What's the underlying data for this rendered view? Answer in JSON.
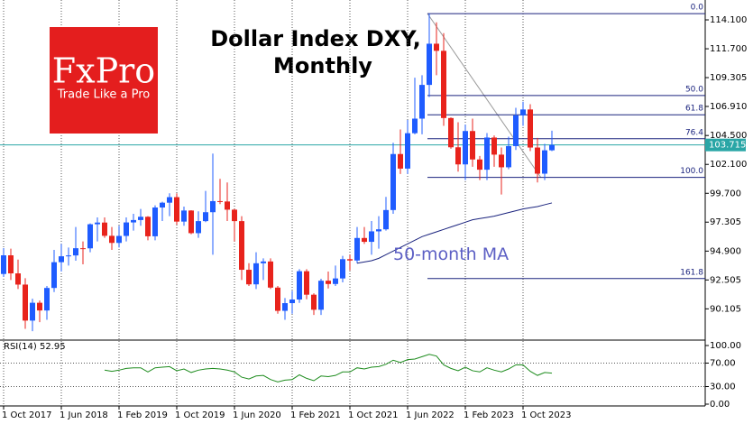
{
  "chart_data": [
    {
      "type": "candlestick",
      "title": [
        "Dollar Index DXY,",
        "Monthly"
      ],
      "logo": {
        "name": "FxPro",
        "tagline": "Trade Like a Pro"
      },
      "x": [
        "2017-10",
        "2017-11",
        "2017-12",
        "2018-01",
        "2018-02",
        "2018-03",
        "2018-04",
        "2018-05",
        "2018-06",
        "2018-07",
        "2018-08",
        "2018-09",
        "2018-10",
        "2018-11",
        "2018-12",
        "2019-01",
        "2019-02",
        "2019-03",
        "2019-04",
        "2019-05",
        "2019-06",
        "2019-07",
        "2019-08",
        "2019-09",
        "2019-10",
        "2019-11",
        "2019-12",
        "2020-01",
        "2020-02",
        "2020-03",
        "2020-04",
        "2020-05",
        "2020-06",
        "2020-07",
        "2020-08",
        "2020-09",
        "2020-10",
        "2020-11",
        "2020-12",
        "2021-01",
        "2021-02",
        "2021-03",
        "2021-04",
        "2021-05",
        "2021-06",
        "2021-07",
        "2021-08",
        "2021-09",
        "2021-10",
        "2021-11",
        "2021-12",
        "2022-01",
        "2022-02",
        "2022-03",
        "2022-04",
        "2022-05",
        "2022-06",
        "2022-07",
        "2022-08",
        "2022-09",
        "2022-10",
        "2022-11",
        "2022-12",
        "2023-01",
        "2023-02",
        "2023-03",
        "2023-04",
        "2023-05",
        "2023-06",
        "2023-07",
        "2023-08",
        "2023-09",
        "2023-10",
        "2023-11",
        "2023-12",
        "2024-01",
        "2024-02"
      ],
      "open": [
        93.0,
        94.55,
        93.05,
        92.12,
        89.13,
        90.61,
        89.97,
        91.84,
        93.98,
        94.47,
        94.54,
        95.14,
        95.13,
        97.13,
        97.27,
        96.17,
        95.58,
        96.16,
        97.28,
        97.48,
        97.75,
        96.13,
        98.52,
        98.92,
        99.38,
        97.35,
        98.27,
        96.39,
        97.39,
        98.13,
        99.05,
        99.02,
        98.34,
        97.39,
        93.35,
        92.14,
        93.89,
        94.04,
        91.87,
        89.94,
        90.58,
        90.88,
        93.23,
        91.28,
        90.03,
        92.44,
        92.17,
        92.63,
        94.23,
        94.12,
        95.99,
        95.67,
        96.54,
        96.71,
        98.31,
        102.96,
        101.75,
        104.69,
        105.9,
        108.7,
        112.12,
        111.53,
        105.95,
        103.52,
        102.1,
        104.87,
        102.51,
        101.66,
        104.33,
        102.91,
        101.86,
        103.62,
        106.17,
        106.66,
        103.5,
        101.33,
        103.27
      ],
      "high": [
        95.15,
        95.1,
        94.2,
        92.65,
        90.95,
        90.8,
        92.0,
        95.0,
        95.5,
        95.2,
        96.9,
        95.7,
        97.2,
        97.7,
        97.7,
        96.9,
        97.0,
        97.7,
        98.0,
        98.4,
        97.8,
        98.7,
        99.0,
        99.7,
        99.7,
        98.6,
        98.3,
        98.2,
        99.9,
        103.0,
        100.9,
        100.6,
        98.4,
        97.8,
        93.9,
        94.8,
        94.3,
        94.3,
        92.0,
        91.0,
        91.6,
        93.4,
        93.4,
        91.4,
        92.6,
        93.2,
        93.7,
        94.5,
        94.6,
        96.9,
        96.9,
        97.4,
        97.8,
        99.4,
        103.9,
        105.0,
        105.8,
        109.3,
        109.5,
        114.62,
        113.9,
        113.0,
        106.0,
        105.6,
        105.4,
        105.9,
        102.8,
        104.7,
        104.5,
        103.5,
        104.4,
        106.8,
        107.3,
        107.1,
        104.3,
        103.8,
        104.9
      ],
      "low": [
        92.75,
        92.5,
        91.75,
        88.45,
        88.25,
        89.0,
        89.2,
        91.5,
        93.2,
        93.7,
        94.1,
        93.8,
        94.8,
        95.7,
        96.0,
        95.0,
        95.2,
        95.7,
        96.6,
        97.0,
        95.8,
        95.8,
        97.4,
        97.8,
        97.1,
        97.0,
        96.3,
        96.0,
        97.3,
        94.6,
        98.8,
        97.4,
        95.7,
        92.5,
        92.0,
        91.75,
        92.5,
        91.75,
        89.7,
        89.2,
        89.7,
        90.6,
        90.9,
        89.6,
        89.6,
        91.8,
        92.0,
        92.3,
        93.3,
        93.9,
        95.5,
        94.6,
        95.1,
        96.6,
        98.0,
        101.3,
        101.3,
        104.6,
        104.6,
        107.7,
        109.5,
        105.3,
        103.4,
        101.5,
        100.8,
        101.9,
        100.8,
        100.8,
        101.9,
        99.6,
        101.7,
        103.3,
        105.3,
        103.2,
        100.6,
        100.8,
        103.2
      ],
      "close": [
        94.55,
        93.05,
        92.12,
        89.13,
        90.61,
        89.97,
        91.84,
        93.98,
        94.47,
        94.54,
        95.14,
        95.13,
        97.13,
        97.27,
        96.17,
        95.58,
        96.16,
        97.28,
        97.48,
        97.75,
        96.13,
        98.52,
        98.92,
        99.38,
        97.35,
        98.27,
        96.39,
        97.39,
        98.13,
        99.05,
        99.02,
        98.34,
        97.39,
        93.35,
        92.14,
        93.89,
        94.04,
        91.87,
        89.94,
        90.58,
        90.88,
        93.23,
        91.28,
        90.03,
        92.44,
        92.17,
        92.63,
        94.23,
        94.12,
        95.99,
        95.67,
        96.54,
        96.71,
        98.31,
        102.96,
        101.75,
        104.69,
        105.9,
        108.7,
        112.12,
        111.53,
        105.95,
        103.52,
        102.1,
        104.87,
        102.51,
        101.66,
        104.33,
        102.91,
        101.86,
        103.62,
        106.17,
        106.66,
        103.5,
        101.33,
        103.27,
        103.715
      ],
      "up_color": "#1f5cff",
      "down_color": "#e8231c",
      "ma": {
        "label": "50-month MA",
        "color": "#1a237e",
        "label_color": "#5c5fc4",
        "values": [
          null,
          null,
          null,
          null,
          null,
          null,
          null,
          null,
          null,
          null,
          null,
          null,
          null,
          null,
          null,
          null,
          null,
          null,
          null,
          null,
          null,
          null,
          null,
          null,
          null,
          null,
          null,
          null,
          null,
          null,
          null,
          null,
          null,
          null,
          null,
          null,
          null,
          null,
          null,
          null,
          null,
          null,
          null,
          null,
          null,
          null,
          null,
          null,
          null,
          93.9,
          94.0,
          94.1,
          94.3,
          94.6,
          94.9,
          95.2,
          95.5,
          95.8,
          96.1,
          96.3,
          96.5,
          96.7,
          96.9,
          97.1,
          97.3,
          97.5,
          97.6,
          97.7,
          97.8,
          97.95,
          98.1,
          98.25,
          98.4,
          98.5,
          98.6,
          98.75,
          98.9
        ]
      },
      "fibonacci": {
        "color": "#1a237e",
        "levels": [
          {
            "ratio_label": "0.0",
            "price": 114.62
          },
          {
            "ratio_label": "50.0",
            "price": 107.82
          },
          {
            "ratio_label": "61.8",
            "price": 106.22
          },
          {
            "ratio_label": "76.4",
            "price": 104.23
          },
          {
            "ratio_label": "100.0",
            "price": 101.02
          },
          {
            "ratio_label": "161.8",
            "price": 92.62
          }
        ]
      },
      "last_price": 103.715,
      "last_price_color": "#2aa6a6",
      "ylim": [
        87.66,
        115.75
      ],
      "yticks": [
        {
          "value": 114.1,
          "label": "114.100"
        },
        {
          "value": 111.7,
          "label": "111.700"
        },
        109.305,
        {
          "value": 106.91,
          "label": "106.910"
        },
        {
          "value": 104.5,
          "label": "104.500"
        },
        {
          "value": 102.1,
          "label": "102.100"
        },
        {
          "value": 99.7,
          "label": "99.700"
        },
        97.305,
        {
          "value": 94.9,
          "label": "94.900"
        },
        92.505,
        90.105
      ],
      "xticks": [
        {
          "value": "2017-10",
          "label": "1 Oct 2017"
        },
        {
          "value": "2018-06",
          "label": "1 Jun 2018"
        },
        {
          "value": "2019-02",
          "label": "1 Feb 2019"
        },
        {
          "value": "2019-10",
          "label": "1 Oct 2019"
        },
        {
          "value": "2020-06",
          "label": "1 Jun 2020"
        },
        {
          "value": "2021-02",
          "label": "1 Feb 2021"
        },
        {
          "value": "2021-10",
          "label": "1 Oct 2021"
        },
        {
          "value": "2022-06",
          "label": "1 Jun 2022"
        },
        {
          "value": "2023-02",
          "label": "1 Feb 2023"
        },
        {
          "value": "2023-10",
          "label": "1 Oct 2023"
        }
      ],
      "grid": true
    },
    {
      "type": "line",
      "label": "RSI(14) 52.95",
      "color": "#1e8c1e",
      "values": [
        null,
        null,
        null,
        null,
        null,
        null,
        null,
        null,
        null,
        null,
        null,
        null,
        null,
        null,
        58,
        56,
        58,
        61,
        62,
        62,
        55,
        62,
        63,
        64,
        57,
        60,
        54,
        58,
        60,
        61,
        60,
        58,
        55,
        46,
        43,
        48,
        49,
        42,
        38,
        41,
        42,
        50,
        44,
        40,
        48,
        47,
        49,
        55,
        55,
        62,
        60,
        63,
        64,
        68,
        75,
        71,
        76,
        77,
        81,
        85,
        82,
        67,
        61,
        57,
        63,
        57,
        55,
        62,
        58,
        55,
        60,
        67,
        67,
        56,
        49,
        54,
        52.95
      ],
      "ylim": [
        0,
        100
      ],
      "yticks": [
        {
          "value": 100,
          "label": "100.00"
        },
        {
          "value": 70,
          "label": "70.00"
        },
        {
          "value": 30,
          "label": "30.00"
        },
        {
          "value": 0,
          "label": "0.00"
        }
      ]
    }
  ]
}
